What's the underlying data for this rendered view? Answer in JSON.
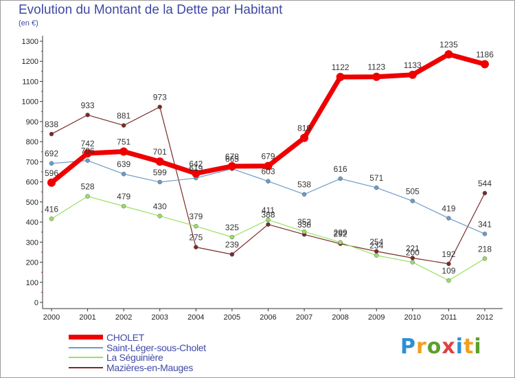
{
  "header": {
    "title": "Evolution du Montant de la Dette par Habitant",
    "unit": "(en €)"
  },
  "chart_data": {
    "type": "line",
    "title": "Evolution du Montant de la Dette par Habitant",
    "ylabel": "(en €)",
    "xlabel": "",
    "ylim": [
      0,
      1300
    ],
    "yticks": [
      0,
      100,
      200,
      300,
      400,
      500,
      600,
      700,
      800,
      900,
      1000,
      1100,
      1200,
      1300
    ],
    "categories": [
      "2000",
      "2001",
      "2002",
      "2003",
      "2004",
      "2005",
      "2006",
      "2007",
      "2008",
      "2009",
      "2010",
      "2011",
      "2012"
    ],
    "grid": false,
    "legend_position": "bottom-left",
    "series": [
      {
        "name": "CHOLET",
        "color": "#ee0000",
        "values": [
          596,
          742,
          751,
          701,
          642,
          678,
          679,
          819,
          1122,
          1123,
          1133,
          1235,
          1186
        ]
      },
      {
        "name": "Saint-Léger-sous-Cholet",
        "color": "#6c9bc8",
        "values": [
          692,
          706,
          639,
          599,
          619,
          665,
          603,
          538,
          616,
          571,
          505,
          419,
          341
        ]
      },
      {
        "name": "La Séguinière",
        "color": "#99e060",
        "values": [
          416,
          528,
          479,
          430,
          379,
          325,
          411,
          352,
          299,
          234,
          200,
          109,
          218
        ]
      },
      {
        "name": "Mazières-en-Mauges",
        "color": "#7a2a2a",
        "values": [
          838,
          933,
          881,
          973,
          275,
          239,
          388,
          338,
          292,
          254,
          221,
          192,
          544
        ]
      }
    ]
  },
  "logo": {
    "letters": [
      "P",
      "r",
      "o",
      "x",
      "i",
      "t",
      "i"
    ],
    "colors": [
      "#2d8fd6",
      "#f0a020",
      "#5aa02c",
      "#e04040",
      "#2d8fd6",
      "#f0a020",
      "#5aa02c"
    ]
  }
}
